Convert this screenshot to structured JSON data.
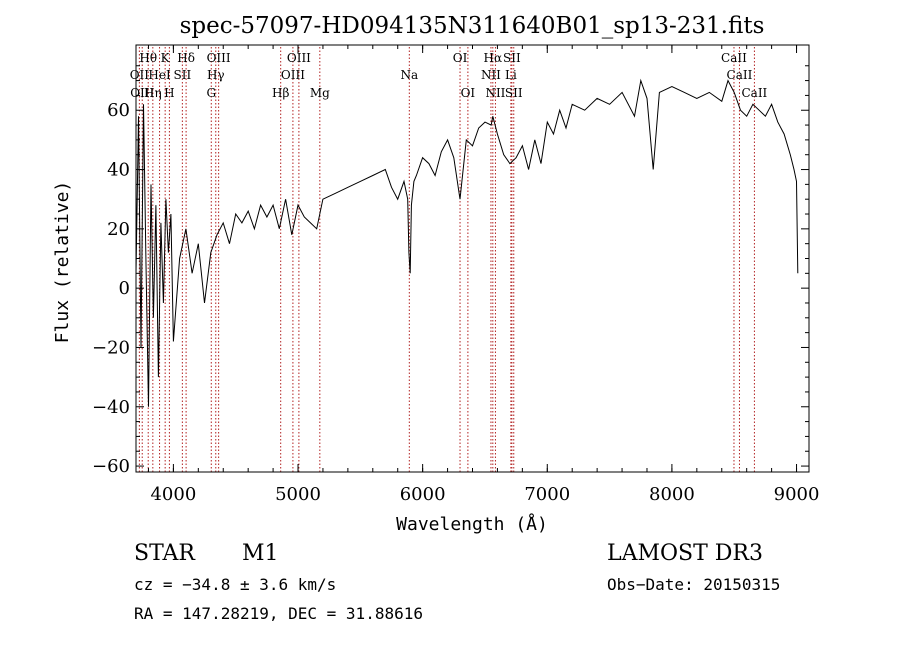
{
  "chart_data": {
    "type": "line",
    "title": "spec-57097-HD094135N311640B01_sp13-231.fits",
    "xlabel": "Wavelength (Å)",
    "ylabel": "Flux (relative)",
    "xlim": [
      3700,
      9100
    ],
    "ylim": [
      -62,
      82
    ],
    "xticks": [
      4000,
      5000,
      6000,
      7000,
      8000,
      9000
    ],
    "yticks": [
      -60,
      -40,
      -20,
      0,
      20,
      40,
      60
    ],
    "spectrum": {
      "name": "flux",
      "x": [
        3700,
        3720,
        3740,
        3760,
        3780,
        3800,
        3820,
        3840,
        3860,
        3880,
        3900,
        3920,
        3940,
        3960,
        3980,
        4000,
        4050,
        4100,
        4150,
        4200,
        4250,
        4300,
        4350,
        4400,
        4450,
        4500,
        4550,
        4600,
        4650,
        4700,
        4750,
        4800,
        4850,
        4900,
        4950,
        5000,
        5050,
        5100,
        5150,
        5200,
        5300,
        5400,
        5500,
        5600,
        5700,
        5750,
        5800,
        5850,
        5880,
        5890,
        5900,
        5910,
        5930,
        5950,
        6000,
        6050,
        6100,
        6150,
        6200,
        6250,
        6300,
        6350,
        6400,
        6450,
        6500,
        6550,
        6563,
        6600,
        6650,
        6700,
        6750,
        6800,
        6850,
        6900,
        6950,
        7000,
        7050,
        7100,
        7150,
        7200,
        7300,
        7400,
        7500,
        7600,
        7700,
        7750,
        7800,
        7850,
        7900,
        8000,
        8100,
        8200,
        8300,
        8400,
        8450,
        8500,
        8550,
        8600,
        8650,
        8700,
        8750,
        8800,
        8850,
        8900,
        8950,
        8980,
        9000,
        9010
      ],
      "y": [
        5,
        58,
        -20,
        62,
        8,
        -40,
        35,
        -10,
        28,
        -30,
        22,
        -5,
        30,
        12,
        25,
        -18,
        10,
        20,
        5,
        15,
        -5,
        12,
        18,
        22,
        15,
        25,
        22,
        26,
        20,
        28,
        24,
        28,
        20,
        30,
        18,
        28,
        24,
        22,
        20,
        30,
        32,
        34,
        36,
        38,
        40,
        34,
        30,
        36,
        30,
        12,
        5,
        28,
        36,
        38,
        44,
        42,
        38,
        46,
        50,
        44,
        30,
        50,
        48,
        54,
        56,
        55,
        58,
        52,
        45,
        42,
        44,
        48,
        40,
        50,
        42,
        56,
        52,
        60,
        54,
        62,
        60,
        64,
        62,
        66,
        58,
        70,
        64,
        40,
        66,
        68,
        66,
        64,
        66,
        63,
        70,
        66,
        60,
        58,
        62,
        60,
        58,
        62,
        56,
        52,
        45,
        40,
        36,
        5
      ]
    },
    "spectral_lines": [
      {
        "name": "Hθ",
        "wave": 3798,
        "row": 1
      },
      {
        "name": "K",
        "wave": 3934,
        "row": 1
      },
      {
        "name": "Hδ",
        "wave": 4102,
        "row": 1
      },
      {
        "name": "OIII",
        "wave": 4363,
        "row": 1
      },
      {
        "name": "OIII",
        "wave": 5007,
        "row": 1
      },
      {
        "name": "OI",
        "wave": 6300,
        "row": 1
      },
      {
        "name": "Hα",
        "wave": 6563,
        "row": 1
      },
      {
        "name": "SII",
        "wave": 6716,
        "row": 1
      },
      {
        "name": "CaII",
        "wave": 8498,
        "row": 1
      },
      {
        "name": "OII",
        "wave": 3727,
        "row": 2
      },
      {
        "name": "HeI",
        "wave": 3889,
        "row": 2
      },
      {
        "name": "SII",
        "wave": 4072,
        "row": 2
      },
      {
        "name": "Hγ",
        "wave": 4340,
        "row": 2
      },
      {
        "name": "OIII",
        "wave": 4959,
        "row": 2
      },
      {
        "name": "Na",
        "wave": 5893,
        "row": 2
      },
      {
        "name": "NII",
        "wave": 6548,
        "row": 2
      },
      {
        "name": "Li",
        "wave": 6708,
        "row": 2
      },
      {
        "name": "CaII",
        "wave": 8542,
        "row": 2
      },
      {
        "name": "OIII",
        "wave": 3750,
        "row": 3
      },
      {
        "name": "Hη",
        "wave": 3835,
        "row": 3
      },
      {
        "name": "H",
        "wave": 3968,
        "row": 3
      },
      {
        "name": "G",
        "wave": 4304,
        "row": 3
      },
      {
        "name": "Hβ",
        "wave": 4861,
        "row": 3
      },
      {
        "name": "Mg",
        "wave": 5175,
        "row": 3
      },
      {
        "name": "OI",
        "wave": 6363,
        "row": 3
      },
      {
        "name": "NII",
        "wave": 6584,
        "row": 3
      },
      {
        "name": "SII",
        "wave": 6731,
        "row": 3
      },
      {
        "name": "CaII",
        "wave": 8662,
        "row": 3
      }
    ]
  },
  "info": {
    "class": "STAR",
    "subclass": "M1",
    "survey": "LAMOST DR3",
    "cz": "cz = −34.8 ± 3.6 km/s",
    "obs_date": "Obs−Date: 20150315",
    "radec": "RA = 147.28219, DEC =  31.88616"
  },
  "colors": {
    "spectrum": "#000000",
    "line_marker": "#b22222",
    "axis": "#000000"
  }
}
